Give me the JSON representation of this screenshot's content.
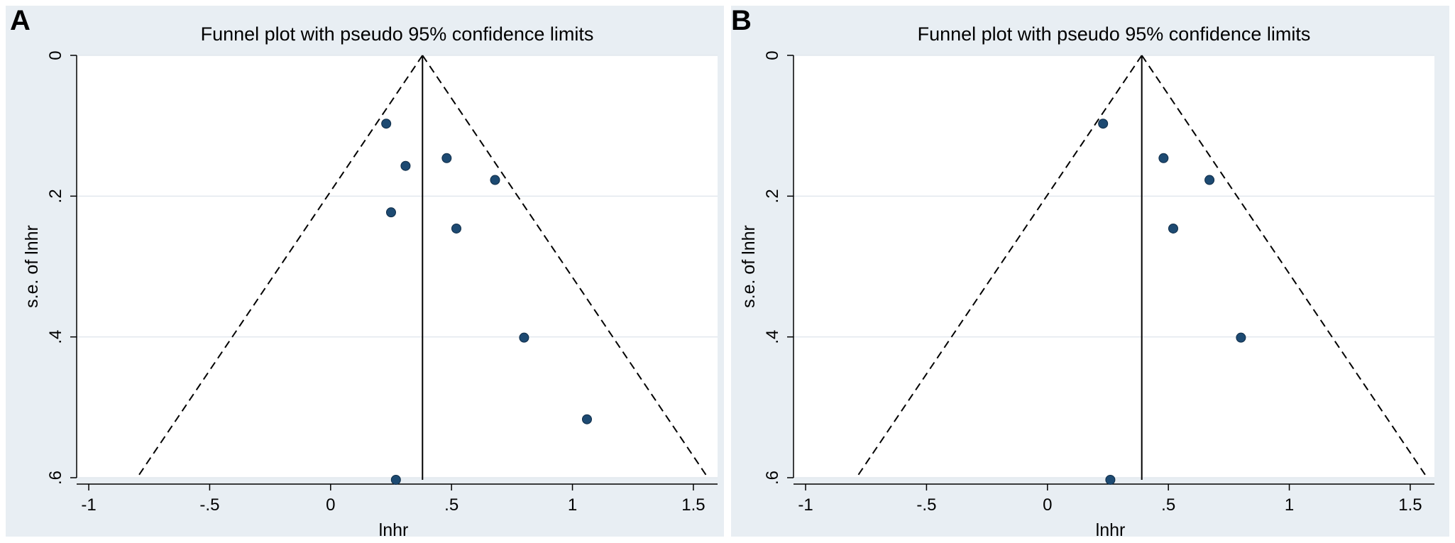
{
  "panels": [
    {
      "letter": "A"
    },
    {
      "letter": "B"
    }
  ],
  "colors": {
    "background": "#e8eef3",
    "plot_area": "#ffffff",
    "gridline": "#e2e8ee",
    "marker": "#1d4a72",
    "line": "#000000"
  },
  "chart_data": [
    {
      "type": "scatter",
      "title": "Funnel plot with pseudo 95% confidence limits",
      "xlabel": "lnhr",
      "ylabel": "s.e. of lnhr",
      "xlim": [
        -1.05,
        1.6
      ],
      "ylim": [
        0,
        0.6
      ],
      "y_reversed": true,
      "x_ticks": [
        -1,
        -0.5,
        0,
        0.5,
        1,
        1.5
      ],
      "x_tick_labels": [
        "-1",
        "-.5",
        "0",
        ".5",
        "1",
        "1.5"
      ],
      "y_ticks": [
        0,
        0.2,
        0.4,
        0.6
      ],
      "y_tick_labels": [
        "0",
        ".2",
        ".4",
        ".6"
      ],
      "grid": true,
      "pooled_estimate": 0.38,
      "confidence_limits": {
        "se_max": 0.6,
        "lower_at_se_max": -0.8,
        "upper_at_se_max": 1.56
      },
      "points": [
        {
          "x": 0.23,
          "y": 0.097
        },
        {
          "x": 0.31,
          "y": 0.157
        },
        {
          "x": 0.48,
          "y": 0.146
        },
        {
          "x": 0.68,
          "y": 0.177
        },
        {
          "x": 0.25,
          "y": 0.223
        },
        {
          "x": 0.52,
          "y": 0.246
        },
        {
          "x": 0.8,
          "y": 0.401
        },
        {
          "x": 1.06,
          "y": 0.517
        },
        {
          "x": 0.27,
          "y": 0.603
        }
      ]
    },
    {
      "type": "scatter",
      "title": "Funnel plot with pseudo 95% confidence limits",
      "xlabel": "lnhr",
      "ylabel": "s.e. of lnhr",
      "xlim": [
        -1.05,
        1.6
      ],
      "ylim": [
        0,
        0.6
      ],
      "y_reversed": true,
      "x_ticks": [
        -1,
        -0.5,
        0,
        0.5,
        1,
        1.5
      ],
      "x_tick_labels": [
        "-1",
        "-.5",
        "0",
        ".5",
        "1",
        "1.5"
      ],
      "y_ticks": [
        0,
        0.2,
        0.4,
        0.6
      ],
      "y_tick_labels": [
        "0",
        ".2",
        ".4",
        ".6"
      ],
      "grid": true,
      "pooled_estimate": 0.39,
      "confidence_limits": {
        "se_max": 0.6,
        "lower_at_se_max": -0.79,
        "upper_at_se_max": 1.57
      },
      "points": [
        {
          "x": 0.23,
          "y": 0.097
        },
        {
          "x": 0.48,
          "y": 0.146
        },
        {
          "x": 0.67,
          "y": 0.177
        },
        {
          "x": 0.52,
          "y": 0.246
        },
        {
          "x": 0.8,
          "y": 0.401
        },
        {
          "x": 0.26,
          "y": 0.603
        }
      ]
    }
  ]
}
